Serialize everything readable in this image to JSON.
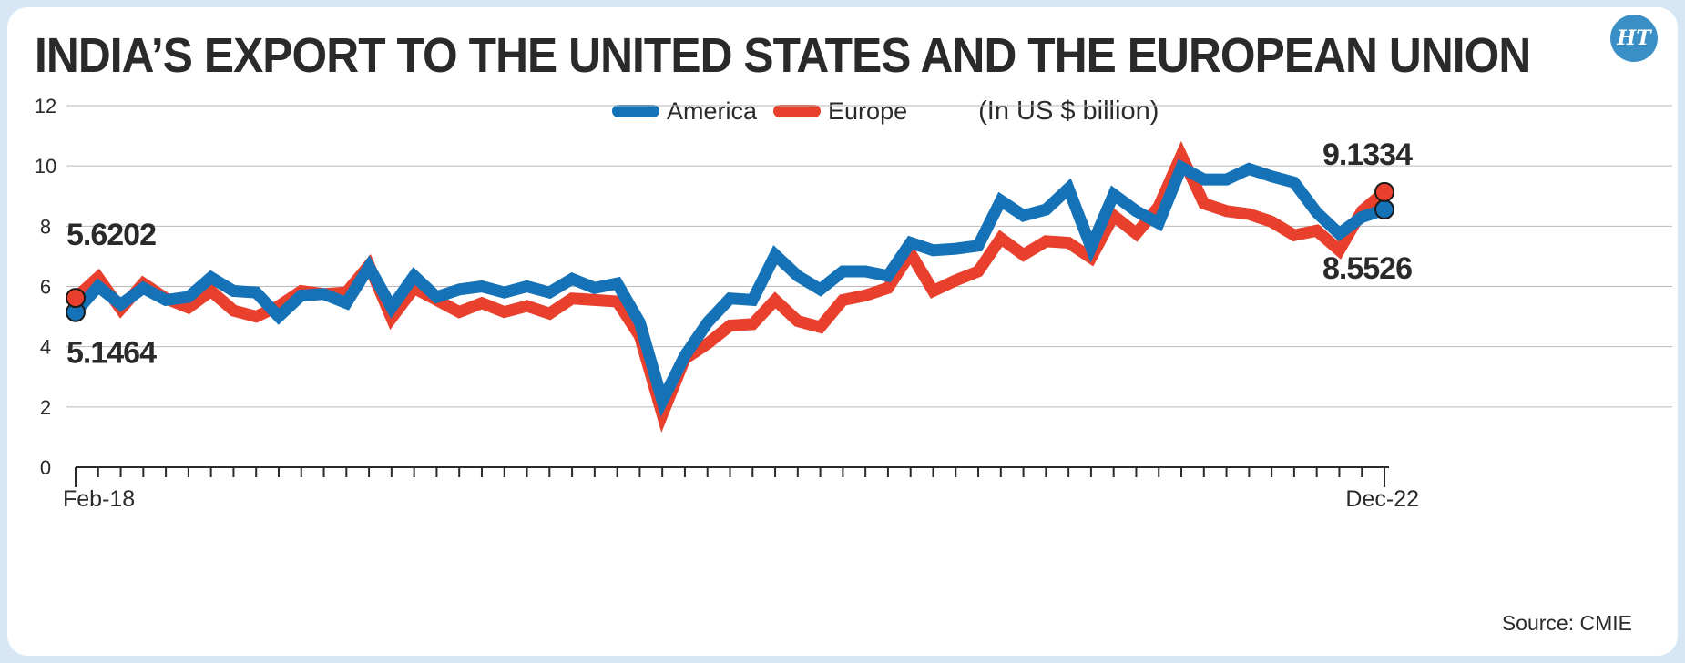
{
  "title": "INDIA’S EXPORT TO THE UNITED STATES AND THE EUROPEAN UNION",
  "logo_text": "HT",
  "legend": [
    {
      "label": "America",
      "color": "#1572b6"
    },
    {
      "label": "Europe",
      "color": "#e8402d"
    }
  ],
  "unit": "(In US $ billion)",
  "source": "Source: CMIE",
  "chart_data": {
    "type": "line",
    "title": "INDIA’S EXPORT TO THE UNITED STATES AND THE EUROPEAN UNION",
    "ylabel": "In US $ billion",
    "ylim": [
      0,
      12
    ],
    "yticks": [
      "0",
      "2",
      "4",
      "6",
      "8",
      "10",
      "12"
    ],
    "x_start_label": "Feb-18",
    "x_end_label": "Dec-22",
    "num_points": 59,
    "series": [
      {
        "name": "America",
        "color": "#1572b6",
        "values": [
          5.1464,
          6.0,
          5.4,
          5.95,
          5.55,
          5.65,
          6.3,
          5.85,
          5.8,
          5.0,
          5.7,
          5.75,
          5.45,
          6.65,
          5.3,
          6.35,
          5.65,
          5.9,
          6.0,
          5.8,
          6.0,
          5.8,
          6.25,
          5.95,
          6.1,
          4.8,
          2.2,
          3.7,
          4.8,
          5.6,
          5.55,
          7.05,
          6.35,
          5.9,
          6.5,
          6.5,
          6.35,
          7.45,
          7.2,
          7.25,
          7.35,
          8.85,
          8.35,
          8.55,
          9.25,
          7.3,
          9.05,
          8.5,
          8.1,
          9.95,
          9.55,
          9.55,
          9.9,
          9.65,
          9.45,
          8.45,
          7.75,
          8.3,
          8.5526
        ]
      },
      {
        "name": "Europe",
        "color": "#e8402d",
        "values": [
          5.6202,
          6.3,
          5.25,
          6.1,
          5.6,
          5.3,
          5.85,
          5.2,
          5.0,
          5.35,
          5.85,
          5.75,
          5.8,
          6.7,
          4.95,
          5.95,
          5.55,
          5.15,
          5.45,
          5.15,
          5.35,
          5.1,
          5.6,
          5.55,
          5.5,
          4.35,
          1.75,
          3.6,
          4.1,
          4.7,
          4.75,
          5.55,
          4.85,
          4.65,
          5.55,
          5.7,
          5.95,
          7.1,
          5.85,
          6.2,
          6.5,
          7.6,
          7.05,
          7.5,
          7.45,
          6.95,
          8.35,
          7.75,
          8.65,
          10.35,
          8.75,
          8.5,
          8.4,
          8.15,
          7.7,
          7.85,
          7.2,
          8.5,
          9.1334
        ]
      }
    ],
    "annotations": [
      {
        "text": "5.6202",
        "series": "Europe",
        "index": 0
      },
      {
        "text": "5.1464",
        "series": "America",
        "index": 0
      },
      {
        "text": "9.1334",
        "series": "Europe",
        "index": 58
      },
      {
        "text": "8.5526",
        "series": "America",
        "index": 58
      }
    ]
  }
}
